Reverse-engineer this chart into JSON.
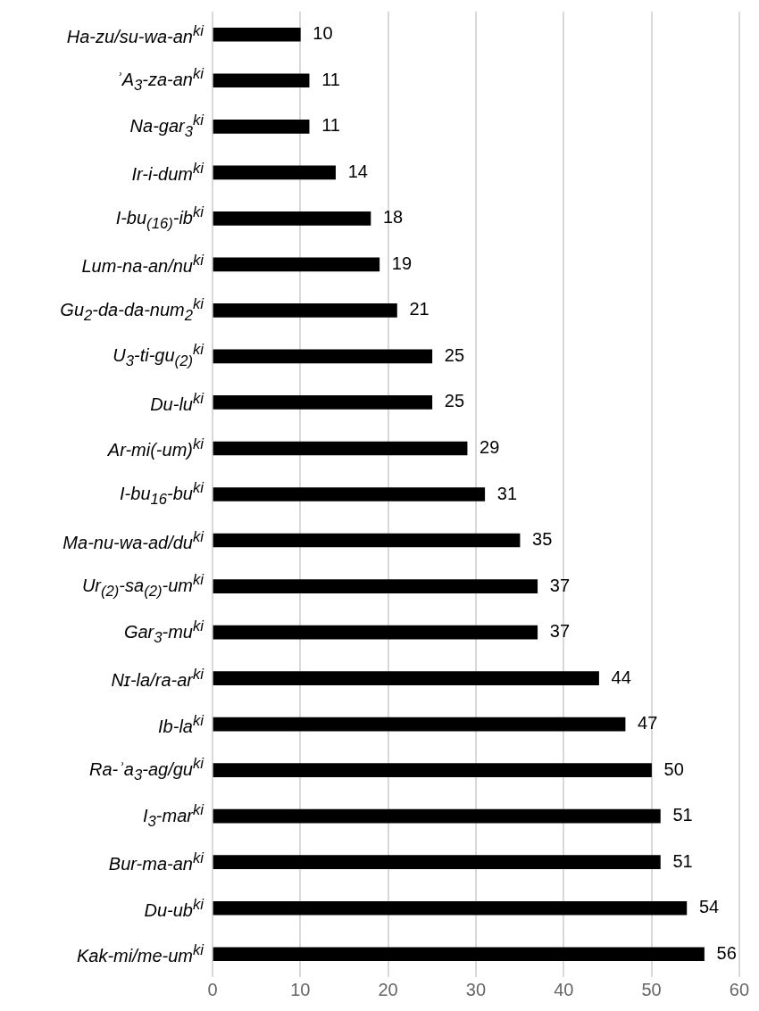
{
  "chart_data": {
    "type": "bar",
    "orientation": "horizontal",
    "categories": [
      "Ha-zu/su-wa-an$^{ki}$",
      "ʾA$_{3}$-za-an$^{ki}$",
      "Na-gar$_{3}$$^{ki}$",
      "Ir-i-dum$^{ki}$",
      "I-bu$_{(16)}$-ib$^{ki}$",
      "Lum-na-an/nu$^{ki}$",
      "Gu$_{2}$-da-da-num$_{2}$$^{ki}$",
      "U$_{3}$-ti-gu$_{(2)}$$^{ki}$",
      "Du-lu$^{ki}$",
      "Ar-mi(-um)$^{ki}$",
      "I-bu$_{16}$-bu$^{ki}$",
      "Ma-nu-wa-ad/du$^{ki}$",
      "Ur$_{(2)}$-sa$_{(2)}$-um$^{ki}$",
      "Gar$_{3}$-mu$^{ki}$",
      "Nɪ-la/ra-ar$^{ki}$",
      "Ib-la$^{ki}$",
      "Ra-ʾa$_{3}$-ag/gu$^{ki}$",
      "I$_{3}$-mar$^{ki}$",
      "Bur-ma-an$^{ki}$",
      "Du-ub$^{ki}$",
      "Kak-mi/me-um$^{ki}$"
    ],
    "values": [
      10,
      11,
      11,
      14,
      18,
      19,
      21,
      25,
      25,
      29,
      31,
      35,
      37,
      37,
      44,
      47,
      50,
      51,
      51,
      54,
      56
    ],
    "color": "#000000",
    "xlim": [
      0,
      60
    ],
    "xticks": [
      0,
      10,
      20,
      30,
      40,
      50,
      60
    ],
    "grid": "x",
    "data_labels": true
  }
}
